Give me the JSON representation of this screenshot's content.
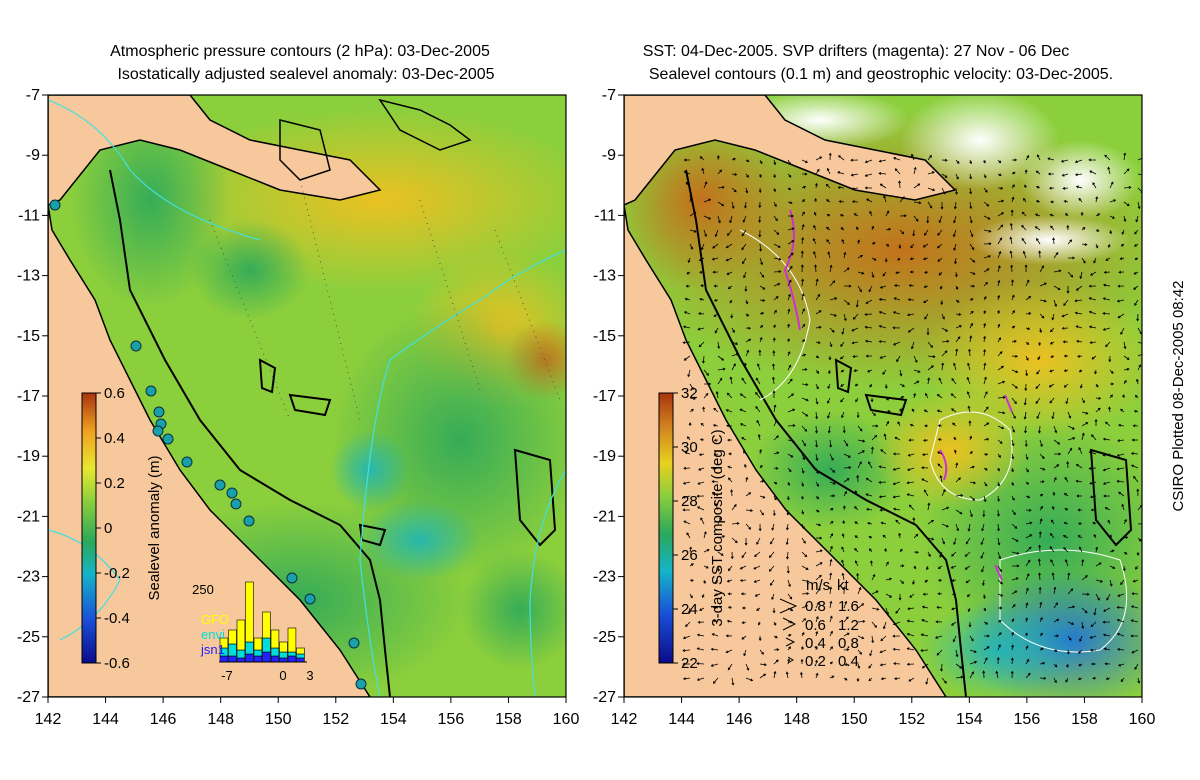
{
  "left_panel": {
    "title_line1": "Atmospheric pressure contours (2 hPa): 03-Dec-2005",
    "title_line2": "Isostatically adjusted sealevel anomaly: 03-Dec-2005",
    "colorbar_label": "Sealevel anomaly (m)",
    "colorbar_ticks": [
      "0.6",
      "0.4",
      "0.2",
      "0",
      "-0.2",
      "-0.4",
      "-0.6"
    ],
    "colorbar_range": [
      -0.6,
      0.6
    ],
    "inset_histogram": {
      "y_max_label": "250",
      "x_tick_labels": [
        "-7",
        "0",
        "3"
      ],
      "legend": [
        {
          "label": "GFO",
          "color": "#ffff00"
        },
        {
          "label": "envi",
          "color": "#00dddd"
        },
        {
          "label": "jsn1",
          "color": "#2222ff"
        }
      ]
    }
  },
  "right_panel": {
    "title_line1": "SST: 04-Dec-2005. SVP drifters (magenta): 27 Nov - 06 Dec",
    "title_line2": "Sealevel contours (0.1 m) and geostrophic velocity: 03-Dec-2005.",
    "colorbar_label": "3-day SST composite (deg C)",
    "colorbar_ticks": [
      "32",
      "30",
      "28",
      "26",
      "24",
      "22"
    ],
    "colorbar_range": [
      22,
      32
    ],
    "velocity_key": {
      "header_ms": "m/s",
      "header_kt": "kt",
      "rows": [
        {
          "ms": "0.8",
          "kt": "1.6"
        },
        {
          "ms": "0.6",
          "kt": "1.2"
        },
        {
          "ms": "0.4",
          "kt": "0.8"
        },
        {
          "ms": "0.2",
          "kt": "0.4"
        }
      ]
    }
  },
  "axes": {
    "lat_ticks": [
      "-7",
      "-9",
      "-11",
      "-13",
      "-15",
      "-17",
      "-19",
      "-21",
      "-23",
      "-25",
      "-27"
    ],
    "lon_ticks": [
      "142",
      "144",
      "146",
      "148",
      "150",
      "152",
      "154",
      "156",
      "158",
      "160"
    ],
    "lon_range": [
      142,
      160
    ],
    "lat_range": [
      -27,
      -7
    ]
  },
  "credit": "CSIRO Plotted 08-Dec-2005 08:42",
  "colors": {
    "land": "#f7c89c",
    "sealevel_ramp": [
      "#0b0b8a",
      "#1a4fd8",
      "#14b4c8",
      "#2ca85a",
      "#8ccf3c",
      "#e8e830",
      "#f0a020",
      "#a83410"
    ],
    "sst_ramp": [
      "#0b0b8a",
      "#1a4fd8",
      "#14b4c8",
      "#2ca85a",
      "#8ccf3c",
      "#e8d020",
      "#d08020",
      "#a83410"
    ],
    "drifter": "#d030d0",
    "contour": "#40e0e0"
  }
}
